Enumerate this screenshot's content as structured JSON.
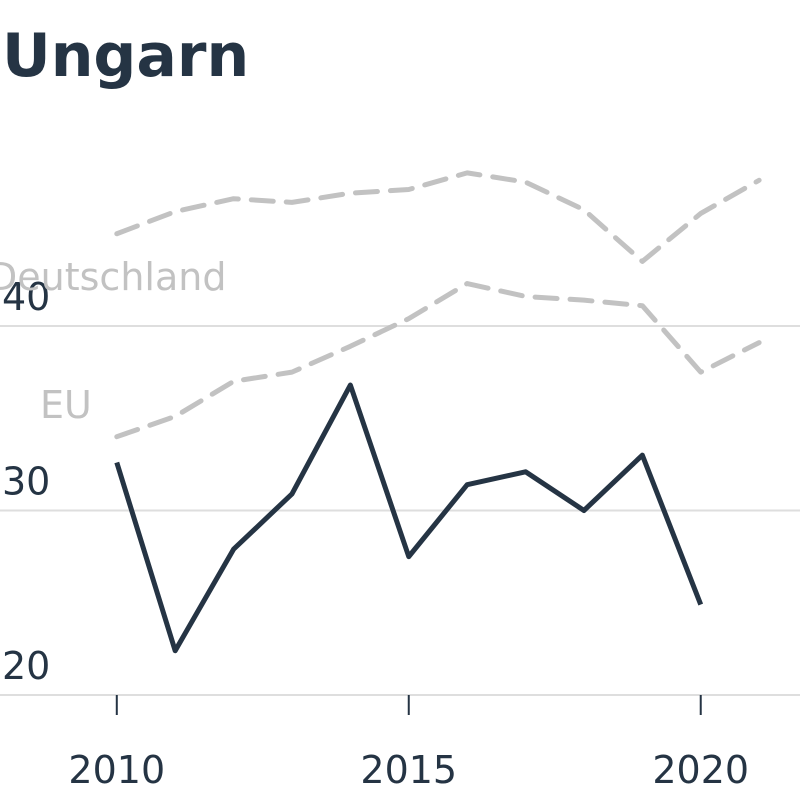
{
  "chart_data": {
    "type": "line",
    "title": "Ungarn",
    "x": [
      2010,
      2011,
      2012,
      2013,
      2014,
      2015,
      2016,
      2017,
      2018,
      2019,
      2020,
      2021
    ],
    "series": [
      {
        "name": "Deutschland",
        "color": "#c2c2c2",
        "dashed": true,
        "values": [
          45.0,
          46.2,
          46.9,
          46.7,
          47.2,
          47.4,
          48.3,
          47.8,
          46.3,
          43.5,
          46.1,
          47.9
        ]
      },
      {
        "name": "EU",
        "color": "#c2c2c2",
        "dashed": true,
        "values": [
          34.0,
          35.1,
          37.0,
          37.5,
          38.9,
          40.4,
          42.3,
          41.6,
          41.4,
          41.1,
          37.5,
          39.1
        ]
      },
      {
        "name": "Ungarn",
        "color": "#253444",
        "dashed": false,
        "values": [
          32.6,
          22.4,
          27.9,
          30.9,
          36.8,
          27.5,
          31.4,
          32.1,
          30.0,
          33.0,
          24.9,
          null
        ]
      }
    ],
    "xlim": [
      2008,
      2021.7
    ],
    "ylim": [
      20,
      50
    ],
    "xticks": [
      2010,
      2015,
      2020
    ],
    "yticks": [
      20,
      30,
      40
    ],
    "grid": true
  }
}
